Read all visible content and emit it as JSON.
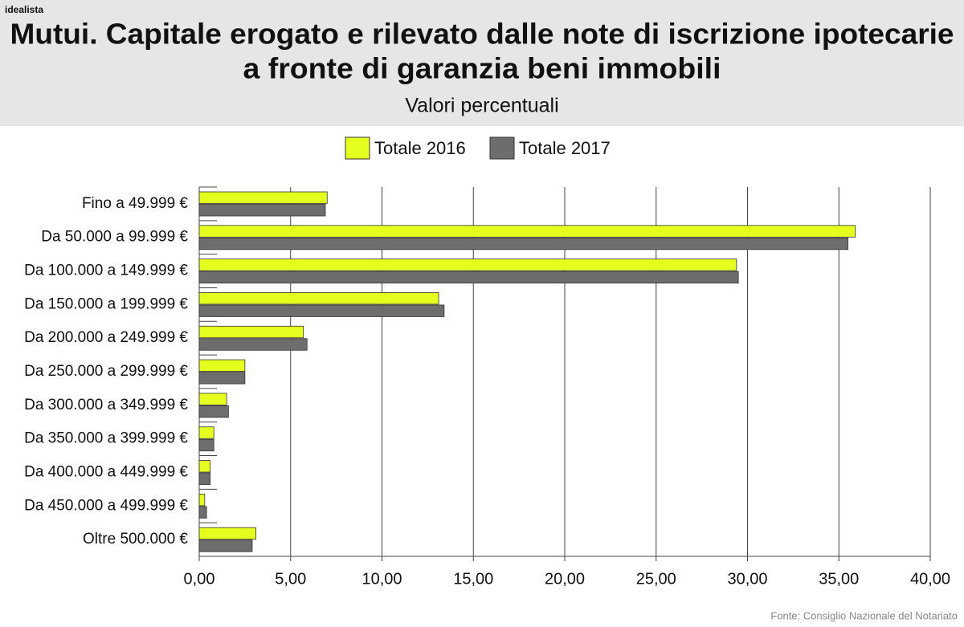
{
  "chart_data": {
    "type": "barh",
    "brand": "idealista",
    "title_lines": [
      "Mutui. Capitale erogato e rilevato dalle note di iscrizione ipotecarie",
      "a fronte di garanzia beni immobili"
    ],
    "subtitle": "Valori percentuali",
    "categories": [
      "Fino a 49.999 €",
      "Da 50.000 a 99.999 €",
      "Da 100.000 a 149.999 €",
      "Da 150.000 a 199.999 €",
      "Da 200.000 a 249.999 €",
      "Da 250.000 a 299.999 €",
      "Da 300.000 a 349.999 €",
      "Da 350.000 a 399.999 €",
      "Da 400.000 a 449.999 €",
      "Da 450.000 a 499.999 €",
      "Oltre 500.000 €"
    ],
    "series": [
      {
        "name": "Totale 2016",
        "color": "#e5ff1f",
        "values": [
          7.0,
          35.9,
          29.4,
          13.1,
          5.7,
          2.5,
          1.5,
          0.8,
          0.6,
          0.3,
          3.1
        ]
      },
      {
        "name": "Totale 2017",
        "color": "#6d6d6d",
        "values": [
          6.9,
          35.5,
          29.5,
          13.4,
          5.9,
          2.5,
          1.6,
          0.8,
          0.6,
          0.4,
          2.9
        ]
      }
    ],
    "xlim": [
      0,
      40
    ],
    "xticks": [
      {
        "value": 0,
        "label": "0,00"
      },
      {
        "value": 5,
        "label": "5,00"
      },
      {
        "value": 10,
        "label": "10,00"
      },
      {
        "value": 15,
        "label": "15,00"
      },
      {
        "value": 20,
        "label": "20,00"
      },
      {
        "value": 25,
        "label": "25,00"
      },
      {
        "value": 30,
        "label": "30,00"
      },
      {
        "value": 35,
        "label": "35,00"
      },
      {
        "value": 40,
        "label": "40,00"
      }
    ],
    "grid": true,
    "legend": "top",
    "source": "Fonte: Consiglio Nazionale del Notariato"
  }
}
